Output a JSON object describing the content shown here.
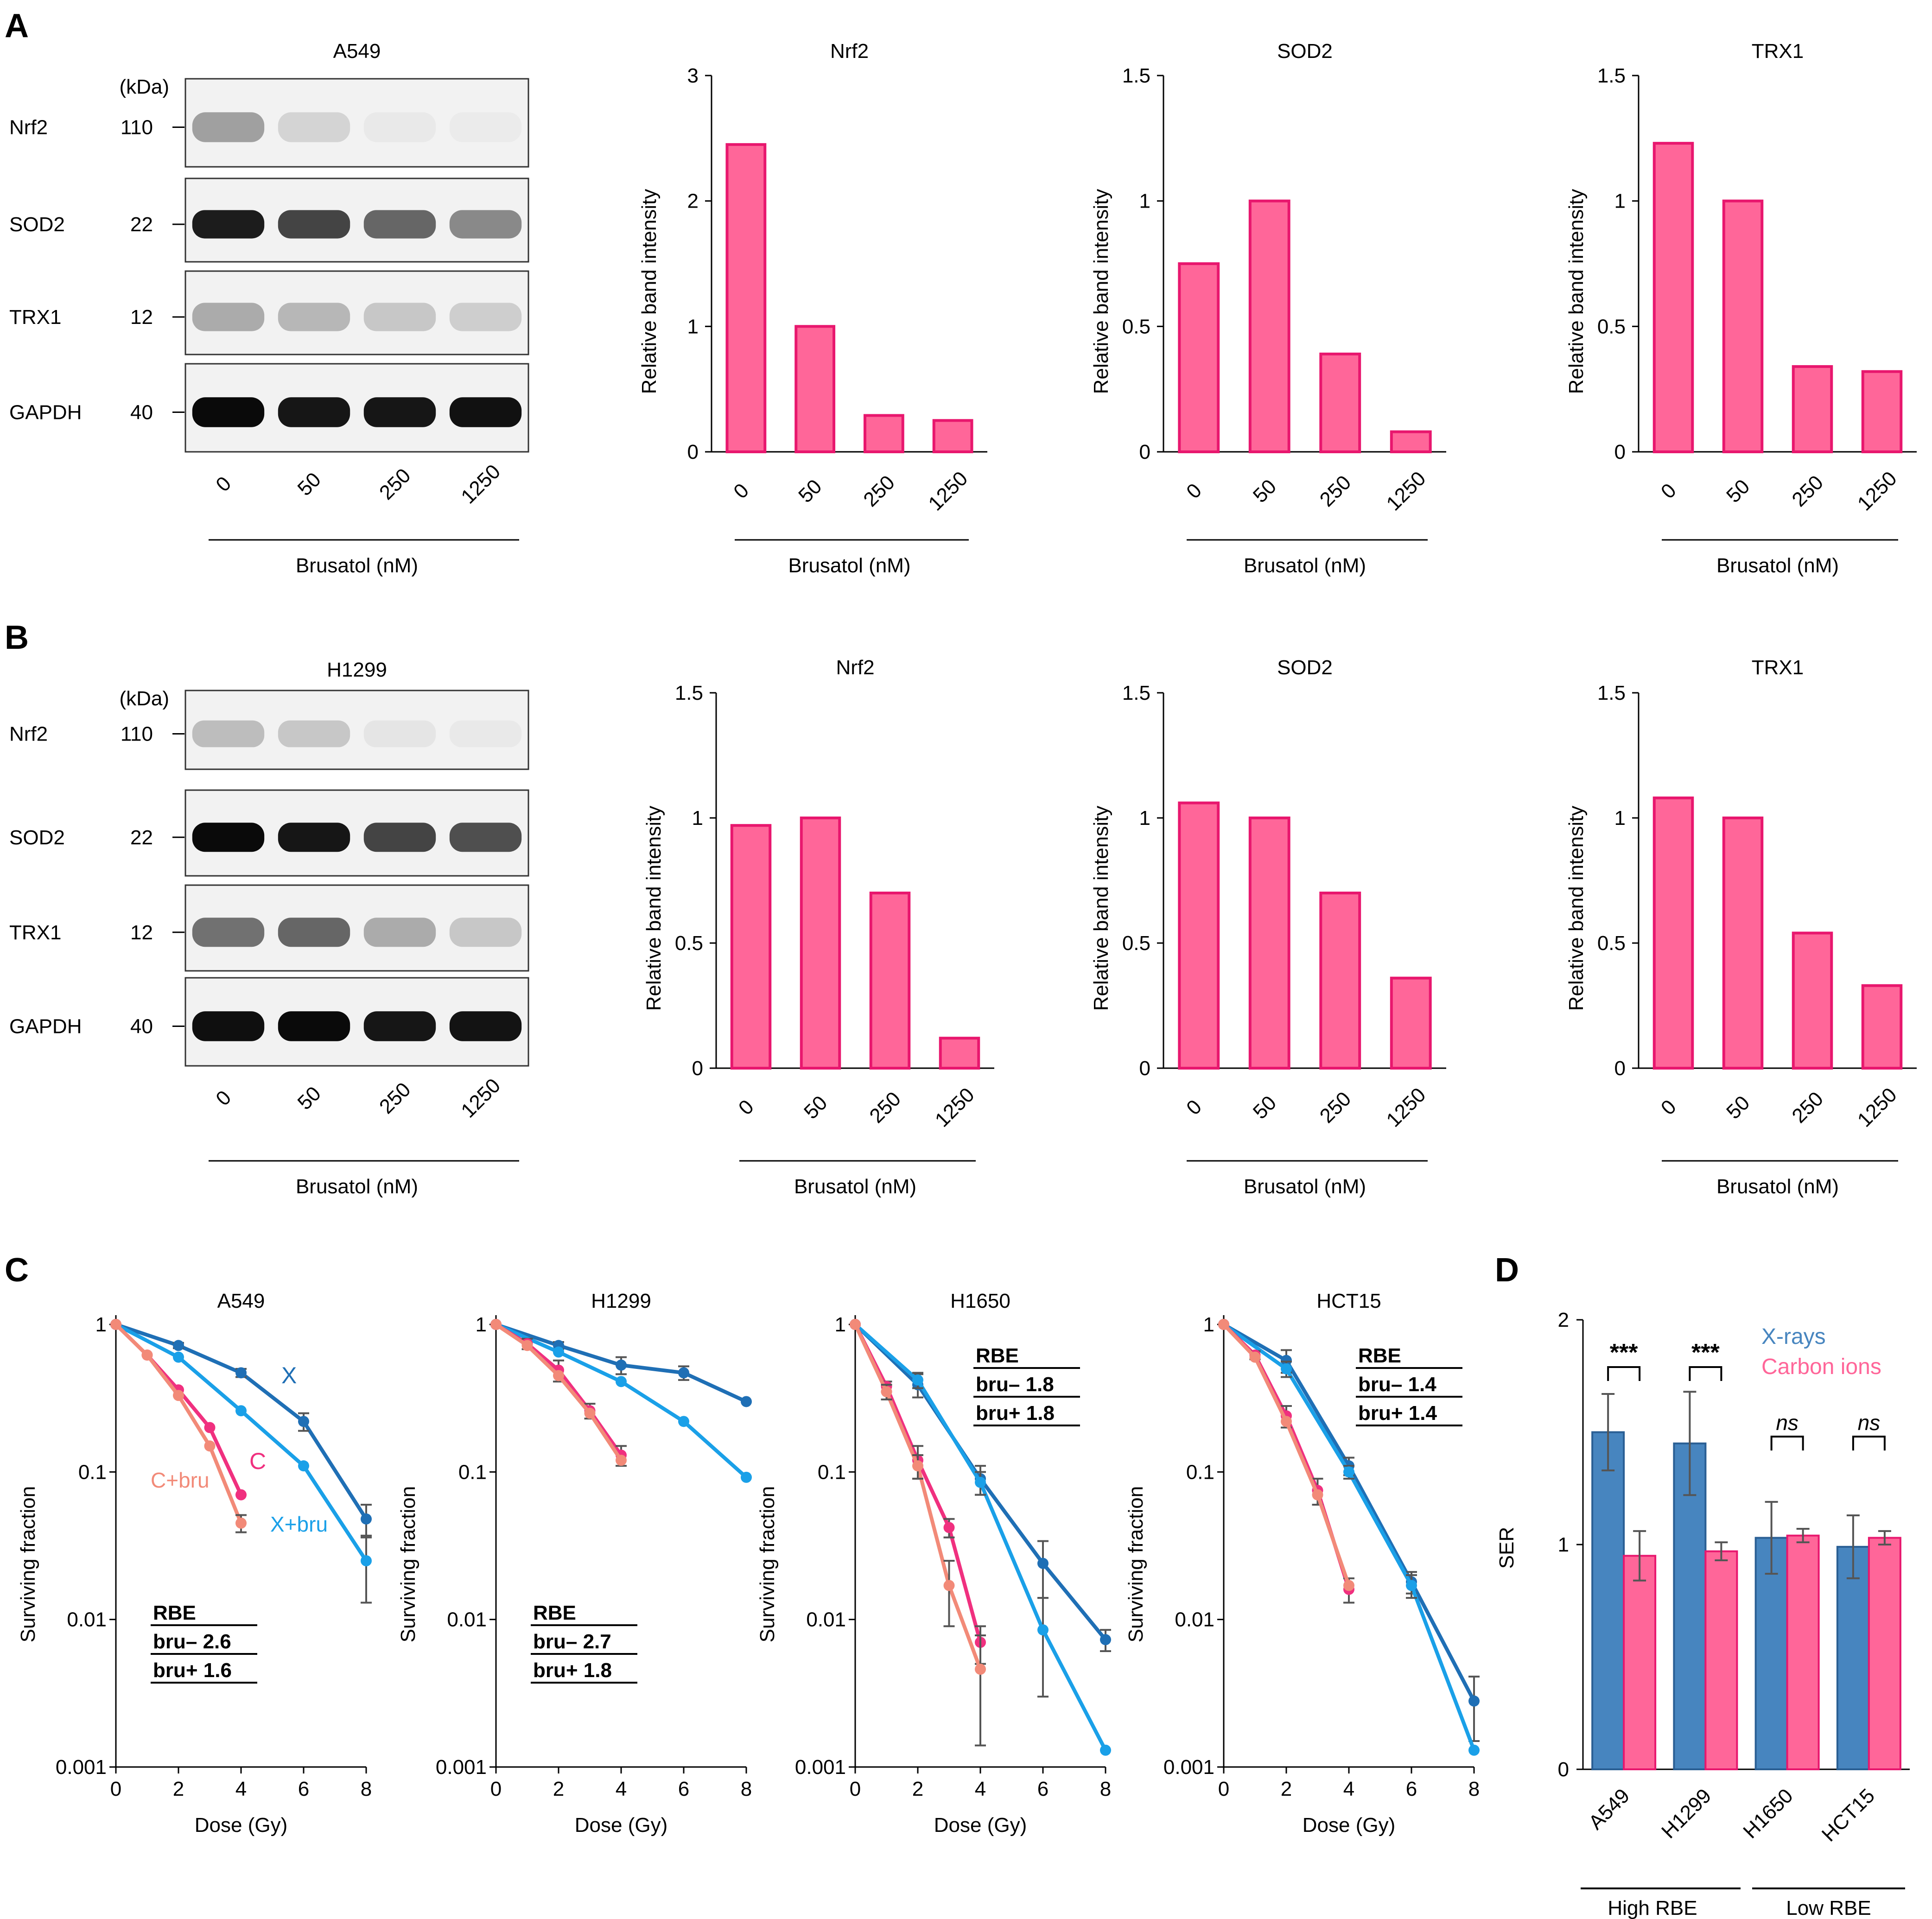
{
  "panels": {
    "a_label": "A",
    "b_label": "B",
    "c_label": "C",
    "d_label": "D"
  },
  "blots": [
    {
      "cell_line": "A549",
      "kda_label": "(kDa)",
      "xlabel": "Brusatol (nM)",
      "lanes": [
        "0",
        "50",
        "250",
        "1250"
      ],
      "rows": [
        {
          "name": "Nrf2",
          "kda": "110",
          "lane_intensity": [
            0.35,
            0.12,
            0.03,
            0.02
          ]
        },
        {
          "name": "SOD2",
          "kda": "22",
          "lane_intensity": [
            0.92,
            0.75,
            0.6,
            0.45
          ]
        },
        {
          "name": "TRX1",
          "kda": "12",
          "lane_intensity": [
            0.3,
            0.25,
            0.18,
            0.15
          ]
        },
        {
          "name": "GAPDH",
          "kda": "40",
          "lane_intensity": [
            1.0,
            0.95,
            0.95,
            0.97
          ]
        }
      ]
    },
    {
      "cell_line": "H1299",
      "kda_label": "(kDa)",
      "xlabel": "Brusatol (nM)",
      "lanes": [
        "0",
        "50",
        "250",
        "1250"
      ],
      "rows": [
        {
          "name": "Nrf2",
          "kda": "110",
          "lane_intensity": [
            0.22,
            0.18,
            0.05,
            0.03
          ]
        },
        {
          "name": "SOD2",
          "kda": "22",
          "lane_intensity": [
            1.0,
            0.95,
            0.75,
            0.7
          ]
        },
        {
          "name": "TRX1",
          "kda": "12",
          "lane_intensity": [
            0.55,
            0.6,
            0.3,
            0.18
          ]
        },
        {
          "name": "GAPDH",
          "kda": "40",
          "lane_intensity": [
            0.98,
            1.0,
            0.95,
            0.96
          ]
        }
      ]
    }
  ],
  "chart_data": [
    {
      "id": "A-Nrf2",
      "type": "bar",
      "title": "Nrf2",
      "categories": [
        "0",
        "50",
        "250",
        "1250"
      ],
      "values": [
        2.45,
        1.0,
        0.29,
        0.25
      ],
      "ylabel": "Relative band intensity",
      "xlabel": "Brusatol (nM)",
      "ylim": [
        0,
        3
      ],
      "yticks": [
        "0",
        "1",
        "2",
        "3"
      ],
      "ytick_values": [
        0,
        1,
        2,
        3
      ],
      "color": "#ff6699",
      "edge": "#e8176e"
    },
    {
      "id": "A-SOD2",
      "type": "bar",
      "title": "SOD2",
      "categories": [
        "0",
        "50",
        "250",
        "1250"
      ],
      "values": [
        0.75,
        1.0,
        0.39,
        0.08
      ],
      "ylabel": "Relative band intensity",
      "xlabel": "Brusatol (nM)",
      "ylim": [
        0,
        1.5
      ],
      "yticks": [
        "0",
        "0.5",
        "1",
        "1.5"
      ],
      "ytick_values": [
        0,
        0.5,
        1,
        1.5
      ],
      "color": "#ff6699",
      "edge": "#e8176e"
    },
    {
      "id": "A-TRX1",
      "type": "bar",
      "title": "TRX1",
      "categories": [
        "0",
        "50",
        "250",
        "1250"
      ],
      "values": [
        1.23,
        1.0,
        0.34,
        0.32
      ],
      "ylabel": "Relative band intensity",
      "xlabel": "Brusatol (nM)",
      "ylim": [
        0,
        1.5
      ],
      "yticks": [
        "0",
        "0.5",
        "1",
        "1.5"
      ],
      "ytick_values": [
        0,
        0.5,
        1,
        1.5
      ],
      "color": "#ff6699",
      "edge": "#e8176e"
    },
    {
      "id": "B-Nrf2",
      "type": "bar",
      "title": "Nrf2",
      "categories": [
        "0",
        "50",
        "250",
        "1250"
      ],
      "values": [
        0.97,
        1.0,
        0.7,
        0.12
      ],
      "ylabel": "Relative band intensity",
      "xlabel": "Brusatol (nM)",
      "ylim": [
        0,
        1.5
      ],
      "yticks": [
        "0",
        "0.5",
        "1",
        "1.5"
      ],
      "ytick_values": [
        0,
        0.5,
        1,
        1.5
      ],
      "color": "#ff6699",
      "edge": "#e8176e"
    },
    {
      "id": "B-SOD2",
      "type": "bar",
      "title": "SOD2",
      "categories": [
        "0",
        "50",
        "250",
        "1250"
      ],
      "values": [
        1.06,
        1.0,
        0.7,
        0.36
      ],
      "ylabel": "Relative band intensity",
      "xlabel": "Brusatol (nM)",
      "ylim": [
        0,
        1.5
      ],
      "yticks": [
        "0",
        "0.5",
        "1",
        "1.5"
      ],
      "ytick_values": [
        0,
        0.5,
        1,
        1.5
      ],
      "color": "#ff6699",
      "edge": "#e8176e"
    },
    {
      "id": "B-TRX1",
      "type": "bar",
      "title": "TRX1",
      "categories": [
        "0",
        "50",
        "250",
        "1250"
      ],
      "values": [
        1.08,
        1.0,
        0.54,
        0.33
      ],
      "ylabel": "Relative band intensity",
      "xlabel": "Brusatol (nM)",
      "ylim": [
        0,
        1.5
      ],
      "yticks": [
        "0",
        "0.5",
        "1",
        "1.5"
      ],
      "ytick_values": [
        0,
        0.5,
        1,
        1.5
      ],
      "color": "#ff6699",
      "edge": "#e8176e"
    },
    {
      "id": "C-A549",
      "type": "line",
      "title": "A549",
      "xlabel": "Dose (Gy)",
      "ylabel": "Surviving fraction",
      "yscale": "log",
      "ylim": [
        0.001,
        1
      ],
      "yticks": [
        "1",
        "0.1",
        "0.01",
        "0.001"
      ],
      "ytick_values": [
        1,
        0.1,
        0.01,
        0.001
      ],
      "xlim": [
        0,
        8
      ],
      "xticks": [
        "0",
        "2",
        "4",
        "6",
        "8"
      ],
      "series": [
        {
          "name": "X",
          "color": "#1f6fb5",
          "x": [
            0,
            2,
            4,
            6,
            8
          ],
          "y": [
            1,
            0.72,
            0.47,
            0.22,
            0.048
          ],
          "err": [
            0,
            0.03,
            0.03,
            0.03,
            0.012
          ]
        },
        {
          "name": "X+bru",
          "color": "#1aa0e8",
          "x": [
            0,
            2,
            4,
            6,
            8
          ],
          "y": [
            1,
            0.6,
            0.26,
            0.11,
            0.025
          ],
          "err": [
            0,
            0,
            0,
            0,
            0.012
          ]
        },
        {
          "name": "C",
          "color": "#f0307f",
          "x": [
            0,
            1,
            2,
            3,
            4
          ],
          "y": [
            1,
            0.62,
            0.36,
            0.2,
            0.07
          ],
          "err": [
            0,
            0,
            0,
            0,
            0
          ]
        },
        {
          "name": "C+bru",
          "color": "#f28a78",
          "x": [
            0,
            1,
            2,
            3,
            4
          ],
          "y": [
            1,
            0.62,
            0.33,
            0.15,
            0.045
          ],
          "err": [
            0,
            0,
            0,
            0,
            0.006
          ]
        }
      ],
      "rbe": {
        "title": "RBE",
        "line1": "bru–  2.6",
        "line2": "bru+ 1.6"
      }
    },
    {
      "id": "C-H1299",
      "type": "line",
      "title": "H1299",
      "xlabel": "Dose (Gy)",
      "ylabel": "Surviving fraction",
      "yscale": "log",
      "ylim": [
        0.001,
        1
      ],
      "yticks": [
        "1",
        "0.1",
        "0.01",
        "0.001"
      ],
      "ytick_values": [
        1,
        0.1,
        0.01,
        0.001
      ],
      "xlim": [
        0,
        8
      ],
      "xticks": [
        "0",
        "2",
        "4",
        "6",
        "8"
      ],
      "series": [
        {
          "name": "X",
          "color": "#1f6fb5",
          "x": [
            0,
            2,
            4,
            6,
            8
          ],
          "y": [
            1,
            0.72,
            0.53,
            0.47,
            0.3
          ],
          "err": [
            0,
            0.04,
            0.07,
            0.05,
            0
          ]
        },
        {
          "name": "X+bru",
          "color": "#1aa0e8",
          "x": [
            0,
            2,
            4,
            6,
            8
          ],
          "y": [
            1,
            0.65,
            0.41,
            0.22,
            0.092
          ],
          "err": [
            0,
            0,
            0,
            0,
            0
          ]
        },
        {
          "name": "C",
          "color": "#f0307f",
          "x": [
            0,
            1,
            2,
            3,
            4
          ],
          "y": [
            1,
            0.74,
            0.49,
            0.26,
            0.13
          ],
          "err": [
            0,
            0.06,
            0.08,
            0.03,
            0.02
          ]
        },
        {
          "name": "C+bru",
          "color": "#f28a78",
          "x": [
            0,
            1,
            2,
            3,
            4
          ],
          "y": [
            1,
            0.72,
            0.45,
            0.25,
            0.12
          ],
          "err": [
            0,
            0,
            0,
            0,
            0
          ]
        }
      ],
      "rbe": {
        "title": "RBE",
        "line1": "bru– 2.7",
        "line2": "bru+ 1.8"
      }
    },
    {
      "id": "C-H1650",
      "type": "line",
      "title": "H1650",
      "xlabel": "Dose (Gy)",
      "ylabel": "Surviving fraction",
      "yscale": "log",
      "ylim": [
        0.001,
        1
      ],
      "yticks": [
        "1",
        "0.1",
        "0.01",
        "0.001"
      ],
      "ytick_values": [
        1,
        0.1,
        0.01,
        0.001
      ],
      "xlim": [
        0,
        8
      ],
      "xticks": [
        "0",
        "2",
        "4",
        "6",
        "8"
      ],
      "series": [
        {
          "name": "X",
          "color": "#1f6fb5",
          "x": [
            0,
            2,
            4,
            6,
            8
          ],
          "y": [
            1,
            0.39,
            0.09,
            0.024,
            0.0073
          ],
          "err": [
            0,
            0.07,
            0.02,
            0.01,
            0.0012
          ]
        },
        {
          "name": "X+bru",
          "color": "#1aa0e8",
          "x": [
            0,
            2,
            4,
            6,
            8
          ],
          "y": [
            1,
            0.42,
            0.085,
            0.0085,
            0.0013
          ],
          "err": [
            0,
            0.05,
            0.015,
            0.0055,
            0
          ]
        },
        {
          "name": "C",
          "color": "#f0307f",
          "x": [
            0,
            1,
            2,
            3,
            4
          ],
          "y": [
            1,
            0.38,
            0.12,
            0.042,
            0.007
          ],
          "err": [
            0,
            0.03,
            0.03,
            0.006,
            0.002
          ]
        },
        {
          "name": "C+bru",
          "color": "#f28a78",
          "x": [
            0,
            1,
            2,
            3,
            4
          ],
          "y": [
            1,
            0.35,
            0.11,
            0.017,
            0.0046
          ],
          "err": [
            0,
            0.04,
            0.02,
            0.008,
            0.0032
          ]
        }
      ],
      "rbe": {
        "title": "RBE",
        "line1": "bru–  1.8",
        "line2": "bru+ 1.8"
      }
    },
    {
      "id": "C-HCT15",
      "type": "line",
      "title": "HCT15",
      "xlabel": "Dose (Gy)",
      "ylabel": "Surviving fraction",
      "yscale": "log",
      "ylim": [
        0.001,
        1
      ],
      "yticks": [
        "1",
        "0.1",
        "0.01",
        "0.001"
      ],
      "ytick_values": [
        1,
        0.1,
        0.01,
        0.001
      ],
      "xlim": [
        0,
        8
      ],
      "xticks": [
        "0",
        "2",
        "4",
        "6",
        "8"
      ],
      "series": [
        {
          "name": "X",
          "color": "#1f6fb5",
          "x": [
            0,
            2,
            4,
            6,
            8
          ],
          "y": [
            1,
            0.57,
            0.11,
            0.018,
            0.0028
          ],
          "err": [
            0,
            0.1,
            0.015,
            0.003,
            0.0013
          ]
        },
        {
          "name": "X+bru",
          "color": "#1aa0e8",
          "x": [
            0,
            2,
            4,
            6,
            8
          ],
          "y": [
            1,
            0.5,
            0.1,
            0.017,
            0.0013
          ],
          "err": [
            0,
            0.06,
            0.01,
            0.003,
            0
          ]
        },
        {
          "name": "C",
          "color": "#f0307f",
          "x": [
            0,
            1,
            2,
            3,
            4
          ],
          "y": [
            1,
            0.62,
            0.24,
            0.075,
            0.016
          ],
          "err": [
            0,
            0.04,
            0.04,
            0.015,
            0.003
          ]
        },
        {
          "name": "C+bru",
          "color": "#f28a78",
          "x": [
            0,
            1,
            2,
            3,
            4
          ],
          "y": [
            1,
            0.6,
            0.22,
            0.07,
            0.017
          ],
          "err": [
            0,
            0,
            0,
            0,
            0
          ]
        }
      ],
      "rbe": {
        "title": "RBE",
        "line1": "bru–  1.4",
        "line2": "bru+ 1.4"
      }
    },
    {
      "id": "D-SER",
      "type": "bar",
      "ylabel": "SER",
      "ylim": [
        0,
        2
      ],
      "yticks": [
        "0",
        "1",
        "2"
      ],
      "ytick_values": [
        0,
        1,
        2
      ],
      "categories": [
        "A549",
        "H1299",
        "H1650",
        "HCT15"
      ],
      "groups": [
        "High RBE",
        "Low RBE"
      ],
      "series": [
        {
          "name": "X-rays",
          "color": "#4785bf",
          "values": [
            1.5,
            1.45,
            1.03,
            0.99
          ],
          "err": [
            0.17,
            0.23,
            0.16,
            0.14
          ]
        },
        {
          "name": "Carbon ions",
          "color": "#ff6699",
          "values": [
            0.95,
            0.97,
            1.04,
            1.03
          ],
          "err": [
            0.11,
            0.04,
            0.03,
            0.03
          ]
        }
      ],
      "significance": [
        "***",
        "***",
        "ns",
        "ns"
      ],
      "legend_position": "top-right"
    }
  ],
  "annotations": {
    "c_a549_labels": {
      "X": "X",
      "C": "C",
      "C+bru": "C+bru",
      "X+bru": "X+bru"
    }
  }
}
